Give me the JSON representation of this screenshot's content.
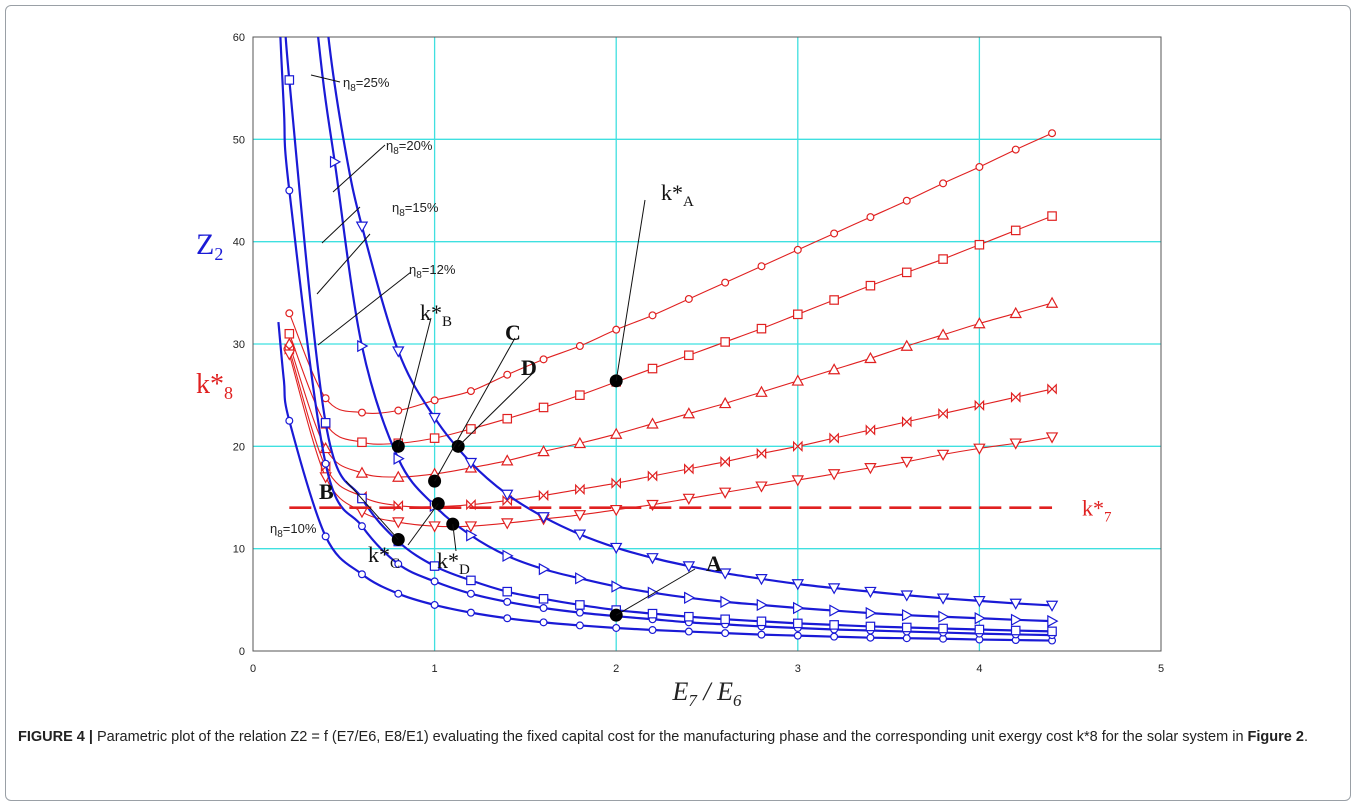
{
  "caption": {
    "label": "FIGURE 4 |",
    "text_before": " Parametric plot of the relation Z2 = f (E7/E6, E8/E1) evaluating the fixed capital cost for the manufacturing phase and the corresponding unit exergy cost k*8 for the solar system in ",
    "ref": "Figure 2",
    "text_after": "."
  },
  "chart_data": {
    "type": "line",
    "xlim": [
      0,
      5
    ],
    "ylim": [
      0,
      60
    ],
    "xticks": [
      0,
      1,
      2,
      3,
      4,
      5
    ],
    "yticks": [
      0,
      10,
      20,
      30,
      40,
      50,
      60
    ],
    "grid": true,
    "xlabel": {
      "main": "E",
      "sub1": "7",
      "slash": " / ",
      "main2": "E",
      "sub2": "6"
    },
    "ylabel_z": {
      "main": "Z",
      "sub": "2"
    },
    "ylabel_k": {
      "main": "k*",
      "sub": "8"
    },
    "reference_line": {
      "value": 14,
      "label_main": "k*",
      "label_sub": "7",
      "color": "#e02020",
      "style": "dashed"
    },
    "colors": {
      "z_series": "#1a1ad6",
      "k_series": "#e02020",
      "grid": "#3fe0e0"
    },
    "z_series": [
      {
        "eta_value": "10%",
        "marker": "circle",
        "x": [
          0.2,
          0.4,
          0.6,
          0.8,
          1.0,
          1.2,
          1.4,
          1.6,
          1.8,
          2.0,
          2.2,
          2.4,
          2.6,
          2.8,
          3.0,
          3.2,
          3.4,
          3.6,
          3.8,
          4.0,
          4.2,
          4.4
        ],
        "y": [
          22.5,
          11.2,
          7.5,
          5.6,
          4.5,
          3.75,
          3.2,
          2.8,
          2.5,
          2.25,
          2.05,
          1.9,
          1.75,
          1.6,
          1.5,
          1.4,
          1.3,
          1.25,
          1.2,
          1.12,
          1.07,
          1.02
        ]
      },
      {
        "eta_value": "12%",
        "marker": "circle",
        "x": [
          0.2,
          0.4,
          0.6,
          0.8,
          1.0,
          1.2,
          1.4,
          1.6,
          1.8,
          2.0,
          2.2,
          2.4,
          2.6,
          2.8,
          3.0,
          3.2,
          3.4,
          3.6,
          3.8,
          4.0,
          4.2,
          4.4
        ],
        "y": [
          45,
          18.3,
          12.2,
          8.5,
          6.8,
          5.6,
          4.8,
          4.2,
          3.75,
          3.4,
          3.1,
          2.8,
          2.6,
          2.4,
          2.25,
          2.1,
          2.0,
          1.9,
          1.8,
          1.7,
          1.62,
          1.55
        ]
      },
      {
        "eta_value": "15%",
        "marker": "square",
        "x": [
          0.2,
          0.4,
          0.6,
          0.8,
          1.0,
          1.2,
          1.4,
          1.6,
          1.8,
          2.0,
          2.2,
          2.4,
          2.6,
          2.8,
          3.0,
          3.2,
          3.4,
          3.6,
          3.8,
          4.0,
          4.2,
          4.4
        ],
        "y": [
          55.8,
          22.3,
          14.9,
          10.7,
          8.3,
          6.9,
          5.8,
          5.1,
          4.5,
          4.0,
          3.65,
          3.35,
          3.1,
          2.9,
          2.7,
          2.55,
          2.4,
          2.3,
          2.2,
          2.1,
          2.0,
          1.92
        ]
      },
      {
        "eta_value": "20%",
        "marker": "triangle-right",
        "x": [
          0.45,
          0.6,
          0.8,
          1.0,
          1.2,
          1.4,
          1.6,
          1.8,
          2.0,
          2.2,
          2.4,
          2.6,
          2.8,
          3.0,
          3.2,
          3.4,
          3.6,
          3.8,
          4.0,
          4.2,
          4.4
        ],
        "y": [
          47.8,
          29.8,
          18.8,
          14.2,
          11.3,
          9.3,
          8.0,
          7.1,
          6.3,
          5.7,
          5.2,
          4.8,
          4.5,
          4.2,
          3.95,
          3.7,
          3.5,
          3.35,
          3.2,
          3.05,
          2.92
        ]
      },
      {
        "eta_value": "25%",
        "marker": "triangle-down",
        "x": [
          0.6,
          0.8,
          1.0,
          1.2,
          1.4,
          1.6,
          1.8,
          2.0,
          2.2,
          2.4,
          2.6,
          2.8,
          3.0,
          3.2,
          3.4,
          3.6,
          3.8,
          4.0,
          4.2,
          4.4
        ],
        "y": [
          41.5,
          29.3,
          22.8,
          18.4,
          15.3,
          13.1,
          11.4,
          10.1,
          9.1,
          8.3,
          7.6,
          7.05,
          6.55,
          6.15,
          5.8,
          5.45,
          5.15,
          4.9,
          4.65,
          4.45
        ]
      }
    ],
    "k_series": [
      {
        "marker": "circle",
        "x": [
          0.2,
          0.4,
          0.6,
          0.8,
          1.0,
          1.2,
          1.4,
          1.6,
          1.8,
          2.0,
          2.2,
          2.4,
          2.6,
          2.8,
          3.0,
          3.2,
          3.4,
          3.6,
          3.8,
          4.0,
          4.2,
          4.4
        ],
        "y": [
          33,
          24.7,
          23.3,
          23.5,
          24.5,
          25.4,
          27.0,
          28.5,
          29.8,
          31.4,
          32.8,
          34.4,
          36.0,
          37.6,
          39.2,
          40.8,
          42.4,
          44.0,
          45.7,
          47.3,
          49.0,
          50.6
        ]
      },
      {
        "marker": "square",
        "x": [
          0.2,
          0.4,
          0.6,
          0.8,
          1.0,
          1.2,
          1.4,
          1.6,
          1.8,
          2.0,
          2.2,
          2.4,
          2.6,
          2.8,
          3.0,
          3.2,
          3.4,
          3.6,
          3.8,
          4.0,
          4.2,
          4.4
        ],
        "y": [
          31,
          22.2,
          20.4,
          20.3,
          20.8,
          21.7,
          22.7,
          23.8,
          25.0,
          26.3,
          27.6,
          28.9,
          30.2,
          31.5,
          32.9,
          34.3,
          35.7,
          37.0,
          38.3,
          39.7,
          41.1,
          42.5
        ]
      },
      {
        "marker": "triangle-up",
        "x": [
          0.2,
          0.4,
          0.6,
          0.8,
          1.0,
          1.2,
          1.4,
          1.6,
          1.8,
          2.0,
          2.2,
          2.4,
          2.6,
          2.8,
          3.0,
          3.2,
          3.4,
          3.6,
          3.8,
          4.0,
          4.2,
          4.4
        ],
        "y": [
          30,
          19.8,
          17.4,
          17.0,
          17.3,
          17.9,
          18.6,
          19.5,
          20.3,
          21.2,
          22.2,
          23.2,
          24.2,
          25.3,
          26.4,
          27.5,
          28.6,
          29.8,
          30.9,
          32.0,
          33.0,
          34.0
        ]
      },
      {
        "marker": "bowtie",
        "x": [
          0.2,
          0.4,
          0.6,
          0.8,
          1.0,
          1.2,
          1.4,
          1.6,
          1.8,
          2.0,
          2.2,
          2.4,
          2.6,
          2.8,
          3.0,
          3.2,
          3.4,
          3.6,
          3.8,
          4.0,
          4.2,
          4.4
        ],
        "y": [
          29.5,
          18.0,
          15.1,
          14.2,
          14.1,
          14.3,
          14.7,
          15.2,
          15.8,
          16.4,
          17.1,
          17.8,
          18.5,
          19.3,
          20.0,
          20.8,
          21.6,
          22.4,
          23.2,
          24.0,
          24.8,
          25.6
        ]
      },
      {
        "marker": "triangle-down",
        "x": [
          0.2,
          0.4,
          0.6,
          0.8,
          1.0,
          1.2,
          1.4,
          1.6,
          1.8,
          2.0,
          2.2,
          2.4,
          2.6,
          2.8,
          3.0,
          3.2,
          3.4,
          3.6,
          3.8,
          4.0,
          4.2,
          4.4
        ],
        "y": [
          29,
          17.0,
          13.6,
          12.6,
          12.2,
          12.2,
          12.5,
          12.9,
          13.3,
          13.8,
          14.3,
          14.9,
          15.5,
          16.1,
          16.7,
          17.3,
          17.9,
          18.5,
          19.2,
          19.8,
          20.3,
          20.9
        ]
      }
    ],
    "highlight_points": [
      {
        "x": 0.8,
        "y": 20.0
      },
      {
        "x": 1.13,
        "y": 20.0
      },
      {
        "x": 1.0,
        "y": 16.6
      },
      {
        "x": 1.02,
        "y": 14.4
      },
      {
        "x": 1.1,
        "y": 12.4
      },
      {
        "x": 0.8,
        "y": 10.9
      },
      {
        "x": 2.0,
        "y": 26.4
      },
      {
        "x": 2.0,
        "y": 3.5
      }
    ],
    "annotations": [
      {
        "id": "kA",
        "main": "k*",
        "sub": "A"
      },
      {
        "id": "kB",
        "main": "k*",
        "sub": "B"
      },
      {
        "id": "C",
        "main": "C",
        "sub": ""
      },
      {
        "id": "D",
        "main": "D",
        "sub": ""
      },
      {
        "id": "A",
        "main": "A",
        "sub": ""
      },
      {
        "id": "B",
        "main": "B",
        "sub": ""
      },
      {
        "id": "kC",
        "main": "k*",
        "sub": "C"
      },
      {
        "id": "kD",
        "main": "k*",
        "sub": "D"
      }
    ],
    "eta_labels": [
      {
        "id": "eta25",
        "symbol": "η",
        "sub": "8",
        "value": "=25%"
      },
      {
        "id": "eta20",
        "symbol": "η",
        "sub": "8",
        "value": "=20%"
      },
      {
        "id": "eta15",
        "symbol": "η",
        "sub": "8",
        "value": "=15%"
      },
      {
        "id": "eta12",
        "symbol": "η",
        "sub": "8",
        "value": "=12%"
      },
      {
        "id": "eta10",
        "symbol": "η",
        "sub": "8",
        "value": "=10%"
      }
    ]
  }
}
